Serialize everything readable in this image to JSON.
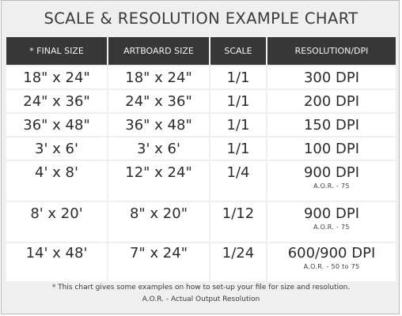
{
  "title": "SCALE & RESOLUTION EXAMPLE CHART",
  "columns": [
    "* FINAL SIZE",
    "ARTBOARD SIZE",
    "SCALE",
    "RESOLUTION/DPI"
  ],
  "rows": [
    {
      "final": "18\" x 24\"",
      "artboard": "18\" x 24\"",
      "scale": "1/1",
      "resolution": "300 DPI"
    },
    {
      "final": "24\" x 36\"",
      "artboard": "24\" x 36\"",
      "scale": "1/1",
      "resolution": "200 DPI"
    },
    {
      "final": "36\" x 48\"",
      "artboard": "36\" x 48\"",
      "scale": "1/1",
      "resolution": "150 DPI"
    },
    {
      "final": "3' x 6'",
      "artboard": "3' x 6'",
      "scale": "1/1",
      "resolution": "100 DPI"
    },
    {
      "final": "4' x 8'",
      "artboard": "12\" x 24\"",
      "scale": "1/4",
      "resolution": "900 DPI",
      "note": "A.O.R. - 75"
    },
    {
      "final": "8' x 20'",
      "artboard": "8\" x 20\"",
      "scale": "1/12",
      "resolution": "900 DPI",
      "note": "A.O.R. - 75"
    },
    {
      "final": "14' x 48'",
      "artboard": "7\" x 24\"",
      "scale": "1/24",
      "resolution": "600/900 DPI",
      "note": "A.O.R. - 50 to 75"
    }
  ],
  "footer": {
    "line1": "* This chart gives some examples on how to set-up your file for size and resolution.",
    "line2": "A.O.R. - Actual Output Resolution"
  }
}
